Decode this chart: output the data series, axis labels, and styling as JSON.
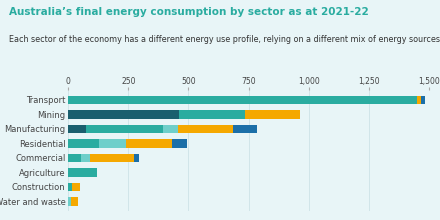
{
  "title": "Australia’s final energy consumption by sector as at 2021-22",
  "subtitle": "Each sector of the economy has a different energy use profile, relying on a different mix of energy sources.",
  "categories": [
    "Transport",
    "Mining",
    "Manufacturing",
    "Residential",
    "Commercial",
    "Agriculture",
    "Construction",
    "Water and waste"
  ],
  "segments": {
    "dark_teal": [
      0,
      460,
      75,
      0,
      0,
      0,
      0,
      0
    ],
    "mid_teal": [
      1450,
      275,
      320,
      130,
      55,
      120,
      15,
      0
    ],
    "light_teal": [
      0,
      0,
      60,
      110,
      35,
      0,
      0,
      12
    ],
    "orange": [
      18,
      230,
      230,
      190,
      185,
      0,
      35,
      30
    ],
    "blue": [
      15,
      0,
      100,
      65,
      20,
      0,
      0,
      0
    ]
  },
  "colors": {
    "dark_teal": "#1a5f6e",
    "mid_teal": "#2aaca0",
    "light_teal": "#6ecfca",
    "orange": "#f5a800",
    "blue": "#1b6fa8"
  },
  "xlim": [
    0,
    1500
  ],
  "xticks": [
    0,
    250,
    500,
    750,
    1000,
    1250,
    1500
  ],
  "xtick_labels": [
    "0",
    "250",
    "500",
    "750",
    "1,000",
    "1,250",
    "1,500"
  ],
  "background_color": "#e8f5f7",
  "title_color": "#2aaca0",
  "subtitle_color": "#333333",
  "axis_label_color": "#444444",
  "title_fontsize": 7.5,
  "subtitle_fontsize": 5.8,
  "tick_fontsize": 5.5,
  "category_fontsize": 6.0,
  "bar_height": 0.58
}
